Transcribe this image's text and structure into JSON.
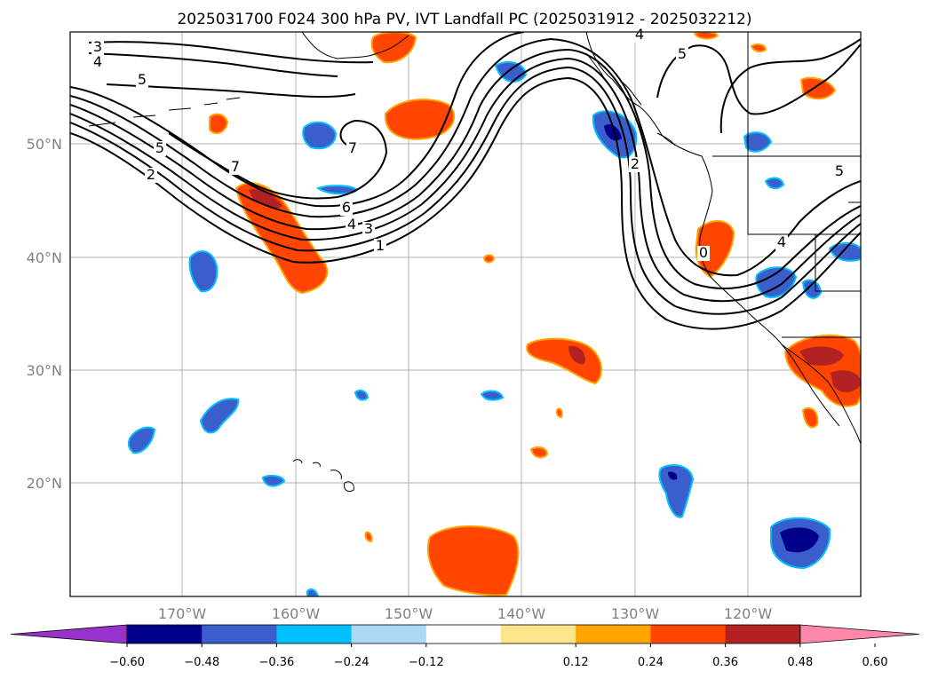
{
  "title": "2025031700 F024 300 hPa PV, IVT Landfall PC (2025031912 - 2025032212)",
  "axes": {
    "lon_labels": [
      "170°W",
      "160°W",
      "150°W",
      "140°W",
      "130°W",
      "120°W"
    ],
    "lat_labels": [
      "50°N",
      "40°N",
      "30°N",
      "20°N"
    ]
  },
  "colorbar": {
    "tick_labels": [
      "−0.60",
      "−0.48",
      "−0.36",
      "−0.24",
      "−0.12",
      "0.12",
      "0.24",
      "0.36",
      "0.48",
      "0.60"
    ],
    "colors": [
      "#9932cc",
      "#00008b",
      "#3a5fcd",
      "#00bfff",
      "#add8f5",
      "#ffffff",
      "#fde68a",
      "#ffa500",
      "#ff4500",
      "#b22222",
      "#ff88aa"
    ]
  },
  "contour_labels": [
    "3",
    "4",
    "5",
    "5",
    "2",
    "7",
    "7",
    "6",
    "4",
    "3",
    "1",
    "4",
    "5",
    "2",
    "0",
    "5",
    "4"
  ],
  "colors": {
    "grid": "#b0b0b0",
    "contour": "#000000",
    "coast": "#000000"
  }
}
